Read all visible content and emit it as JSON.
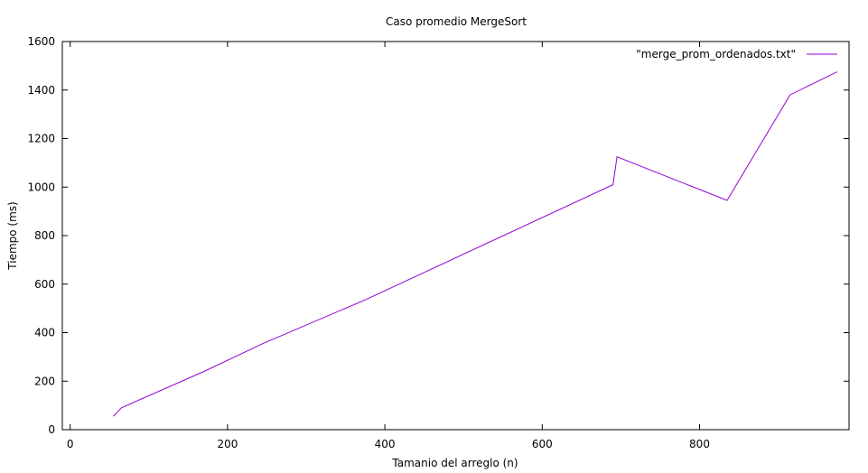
{
  "chart_data": {
    "type": "line",
    "title": "Caso promedio MergeSort",
    "xlabel": "Tamanio del arreglo (n)",
    "ylabel": "Tiempo (ms)",
    "xlim": [
      -10,
      990
    ],
    "ylim": [
      0,
      1600
    ],
    "xticks": [
      0,
      200,
      400,
      600,
      800
    ],
    "yticks": [
      0,
      200,
      400,
      600,
      800,
      1000,
      1200,
      1400,
      1600
    ],
    "grid": false,
    "legend_position": "top-right",
    "series": [
      {
        "name": "\"merge_prom_ordenados.txt\"",
        "color": "#9400d3",
        "x": [
          55,
          65,
          170,
          245,
          375,
          690,
          695,
          835,
          915,
          975
        ],
        "y": [
          55,
          90,
          240,
          355,
          535,
          1010,
          1125,
          945,
          1380,
          1475
        ]
      }
    ]
  }
}
